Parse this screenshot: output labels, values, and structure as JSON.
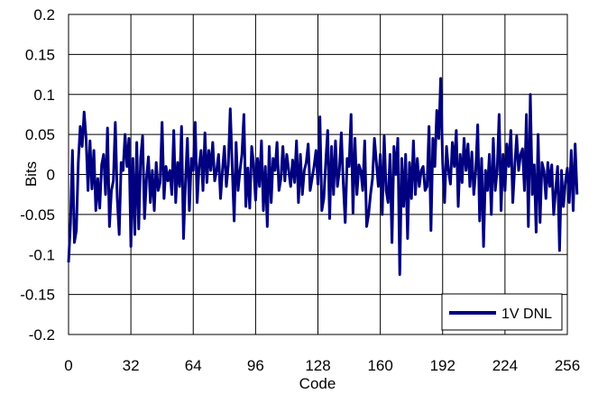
{
  "chart_data": {
    "type": "line",
    "xlabel": "Code",
    "ylabel": "Bits",
    "xlim": [
      0,
      256
    ],
    "ylim": [
      -0.2,
      0.2
    ],
    "x_ticks": [
      "0",
      "32",
      "64",
      "96",
      "128",
      "160",
      "192",
      "224",
      "256"
    ],
    "y_ticks": [
      "0.2",
      "0.15",
      "0.1",
      "0.05",
      "0",
      "-0.05",
      "-0.1",
      "-0.15",
      "-0.2"
    ],
    "grid": true,
    "legend_position": "bottom-right",
    "series": [
      {
        "name": "1V DNL",
        "color": "#000080",
        "x_start": 0,
        "x_step": 1,
        "values": [
          -0.11,
          -0.06,
          0.03,
          -0.085,
          -0.07,
          0.015,
          0.06,
          0.035,
          0.078,
          0.045,
          -0.02,
          0.042,
          -0.018,
          0.03,
          -0.045,
          -0.005,
          -0.042,
          0.012,
          0.025,
          -0.025,
          0.058,
          -0.065,
          -0.02,
          -0.008,
          0.065,
          -0.03,
          -0.075,
          0.015,
          0.005,
          0.05,
          0.01,
          0.045,
          -0.09,
          0.02,
          -0.075,
          0.04,
          -0.068,
          0.02,
          0.048,
          -0.055,
          -0.005,
          0.022,
          -0.035,
          0.005,
          -0.045,
          0.015,
          -0.02,
          -0.01,
          0.065,
          -0.03,
          0.01,
          -0.008,
          0.005,
          -0.025,
          0.055,
          -0.035,
          0.015,
          -0.015,
          0.06,
          -0.08,
          -0.01,
          0.045,
          -0.045,
          0.02,
          0.005,
          0.065,
          -0.035,
          0.01,
          0.03,
          -0.02,
          0.052,
          -0.01,
          0.03,
          0.005,
          0.04,
          -0.008,
          0.005,
          0.025,
          -0.03,
          0.005,
          0.035,
          -0.015,
          0.012,
          0.082,
          0.01,
          -0.058,
          0.04,
          -0.02,
          0.005,
          0.025,
          0.075,
          -0.04,
          0.008,
          -0.042,
          0.035,
          0.012,
          -0.032,
          0.02,
          -0.015,
          0.042,
          -0.045,
          0.01,
          -0.065,
          0.035,
          -0.035,
          0.02,
          0.005,
          0.04,
          -0.02,
          -0.005,
          0.035,
          -0.008,
          0.025,
          0.005,
          -0.015,
          0.018,
          -0.01,
          0.042,
          -0.035,
          0.025,
          -0.025,
          0.005,
          0.015,
          0.038,
          -0.02,
          -0.005,
          0.01,
          0.03,
          -0.012,
          0.072,
          -0.045,
          -0.03,
          0.015,
          0.055,
          -0.055,
          0.035,
          -0.025,
          0.042,
          -0.015,
          0.005,
          0.052,
          -0.01,
          -0.06,
          0.02,
          0.01,
          0.075,
          -0.048,
          0.045,
          -0.025,
          0.012,
          0.005,
          -0.02,
          0.042,
          -0.065,
          -0.05,
          -0.025,
          -0.005,
          0.045,
          0.015,
          -0.015,
          0.025,
          -0.05,
          0.048,
          -0.02,
          -0.035,
          0.025,
          -0.085,
          0.035,
          0.0,
          0.045,
          -0.125,
          0.02,
          -0.04,
          0.025,
          -0.08,
          0.015,
          -0.03,
          0.042,
          -0.025,
          0.02,
          -0.015,
          0.005,
          0.01,
          -0.02,
          -0.015,
          0.06,
          -0.07,
          0.045,
          0.01,
          0.08,
          0.045,
          0.12,
          0.015,
          -0.035,
          0.035,
          0.005,
          -0.012,
          0.04,
          0.01,
          0.055,
          -0.04,
          0.025,
          -0.01,
          0.045,
          0.005,
          0.038,
          -0.015,
          0.028,
          -0.025,
          0.005,
          0.062,
          -0.058,
          0.02,
          -0.09,
          0.005,
          -0.02,
          0.025,
          -0.05,
          0.045,
          -0.02,
          0.005,
          0.075,
          -0.045,
          0.025,
          -0.02,
          0.038,
          0.01,
          0.055,
          -0.035,
          0.01,
          0.048,
          0.005,
          0.025,
          0.032,
          -0.02,
          0.075,
          -0.065,
          0.1,
          -0.025,
          0.012,
          -0.072,
          0.05,
          -0.06,
          0.015,
          0.005,
          -0.03,
          0.015,
          -0.015,
          0.012,
          -0.05,
          -0.02,
          0.01,
          -0.095,
          0.005,
          -0.04,
          -0.01,
          0.008,
          -0.035,
          0.03,
          -0.045,
          0.038,
          -0.025
        ]
      }
    ]
  }
}
